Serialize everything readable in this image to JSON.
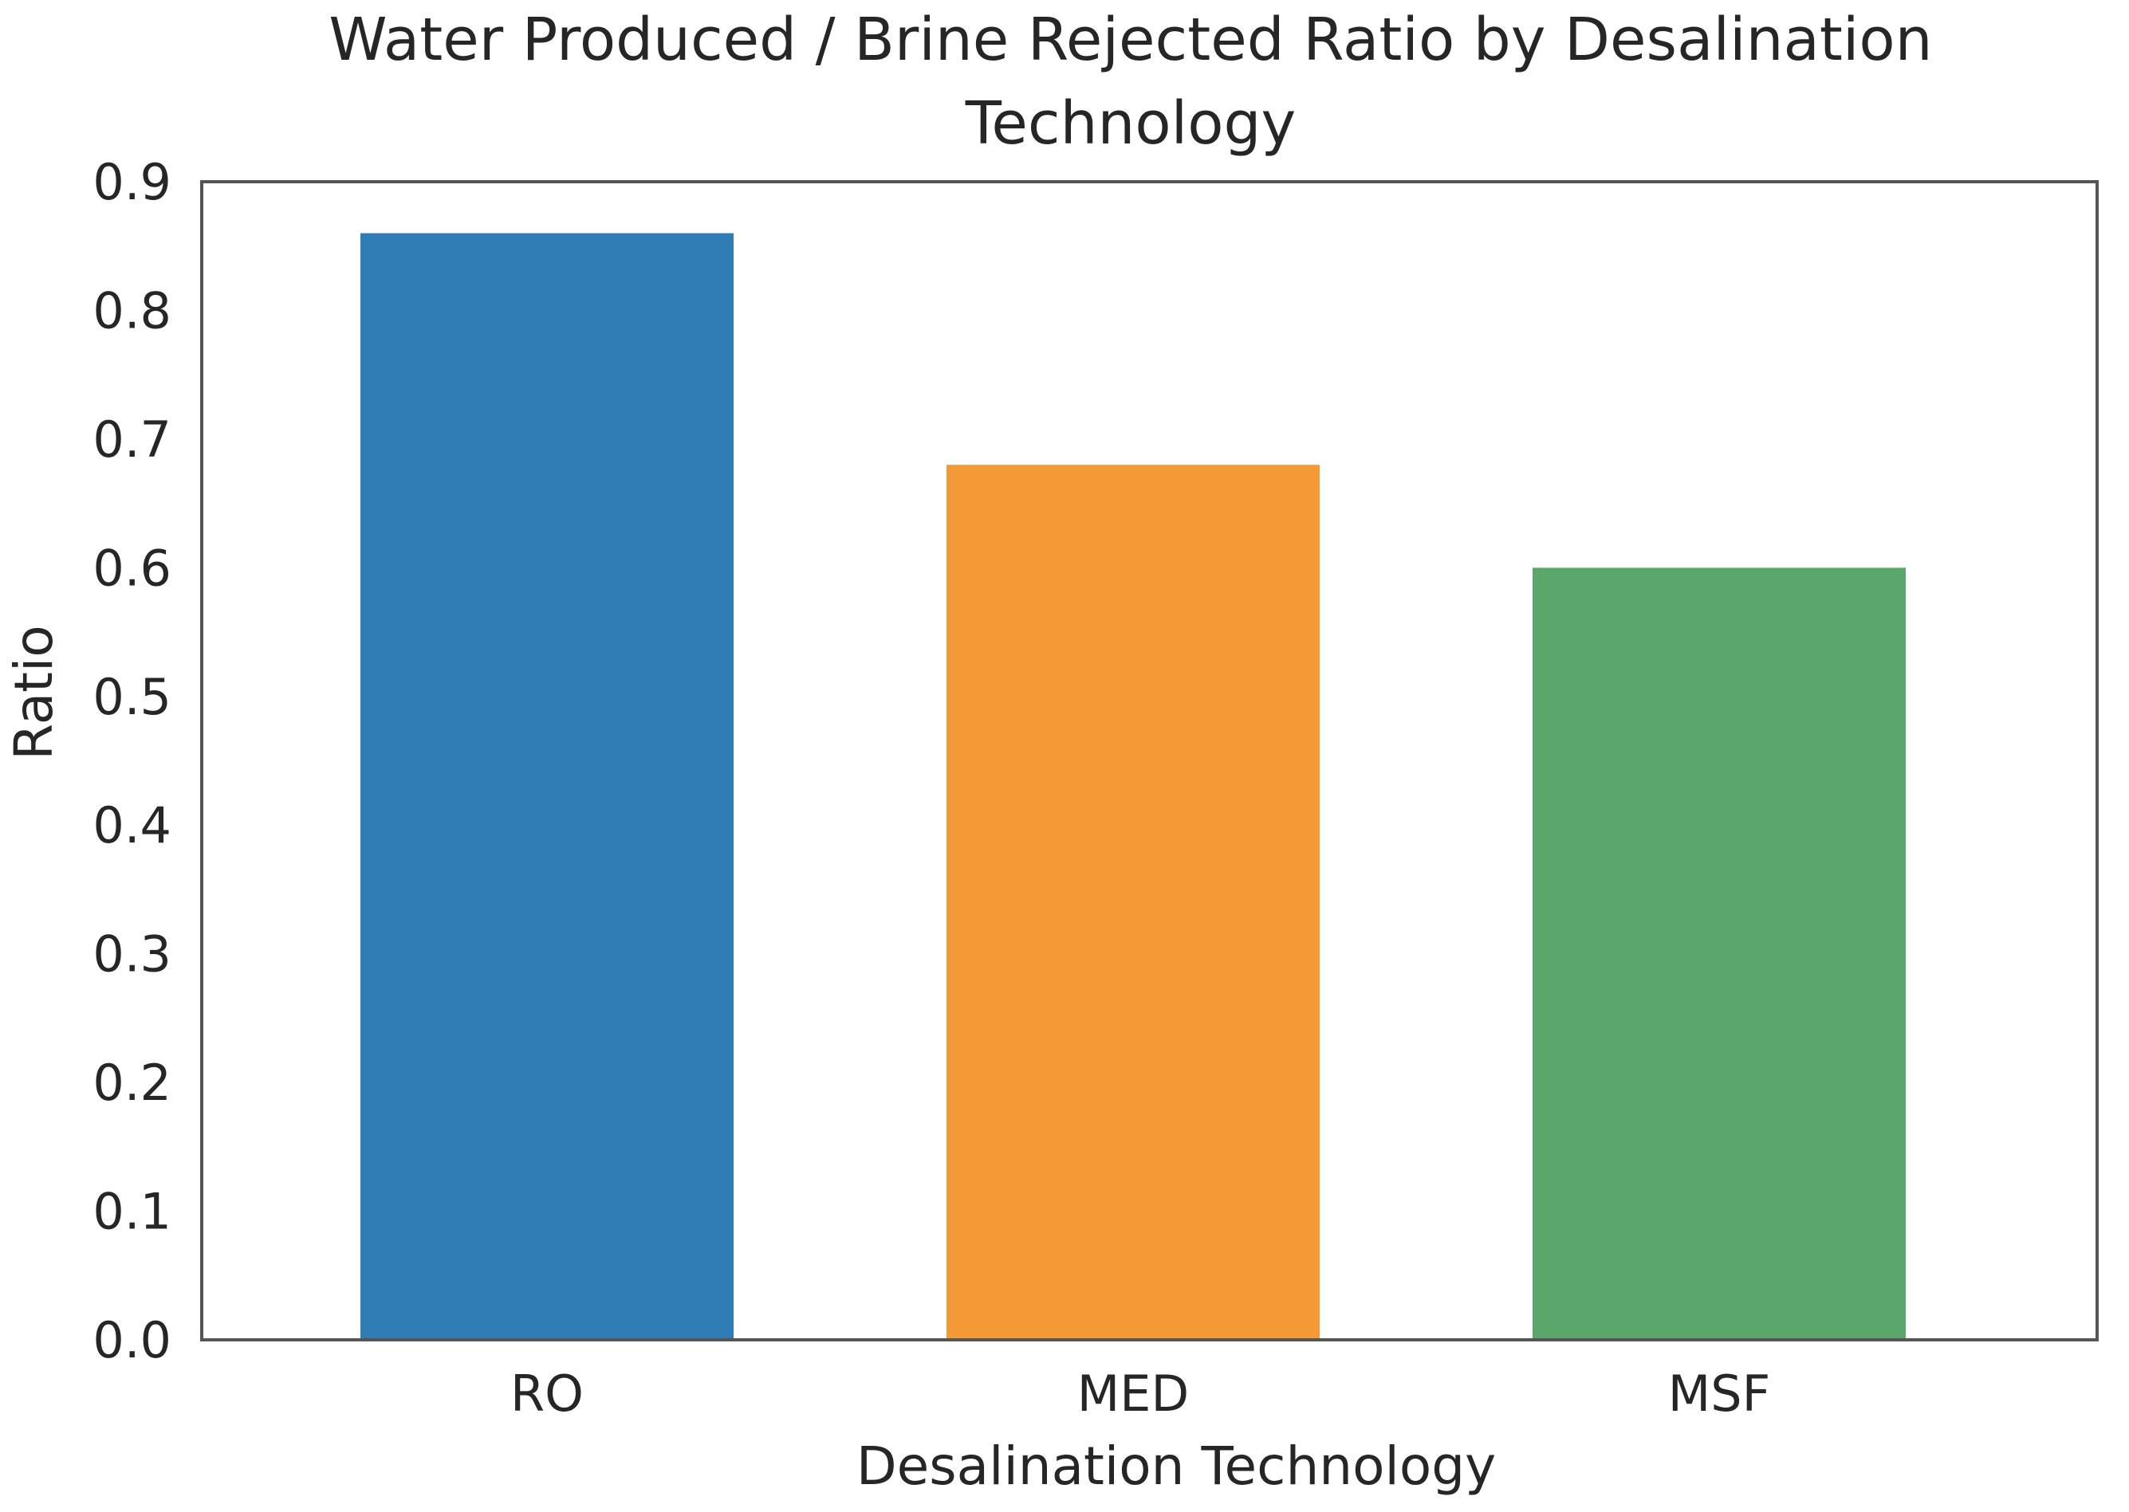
{
  "chart_data": {
    "type": "bar",
    "title": "Water Produced / Brine Rejected Ratio by Desalination Technology",
    "title_lines": [
      "Water Produced / Brine Rejected Ratio by Desalination",
      "Technology"
    ],
    "xlabel": "Desalination Technology",
    "ylabel": "Ratio",
    "categories": [
      "RO",
      "MED",
      "MSF"
    ],
    "values": [
      0.86,
      0.68,
      0.6
    ],
    "colors": [
      "#2f7db4",
      "#f39a36",
      "#5ba66a"
    ],
    "ylim": [
      0,
      0.9
    ],
    "yticks": [
      0.0,
      0.1,
      0.2,
      0.3,
      0.4,
      0.5,
      0.6,
      0.7,
      0.8,
      0.9
    ],
    "ytick_labels": [
      "0.0",
      "0.1",
      "0.2",
      "0.3",
      "0.4",
      "0.5",
      "0.6",
      "0.7",
      "0.8",
      "0.9"
    ],
    "grid": false,
    "legend": "none"
  }
}
